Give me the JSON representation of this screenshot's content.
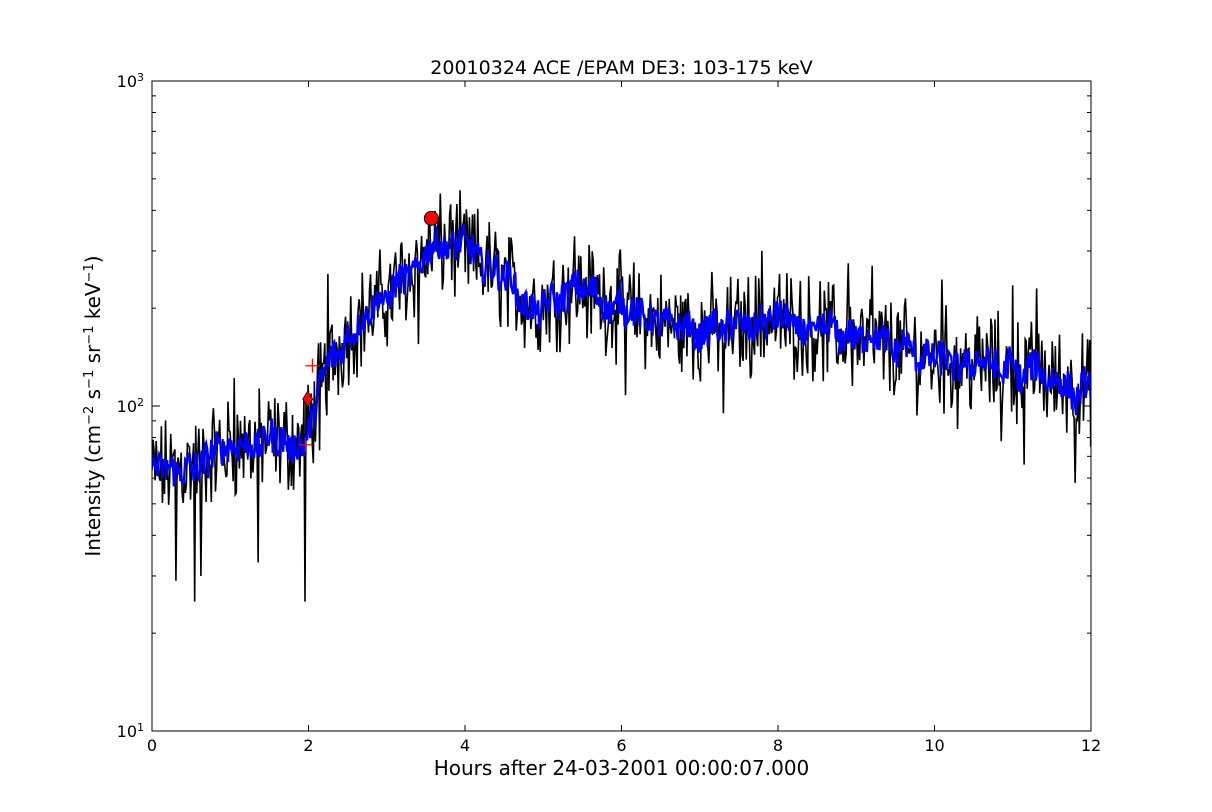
{
  "chart_data": {
    "type": "line",
    "title": "20010324 ACE /EPAM DE3: 103-175 keV",
    "xlabel": "Hours after 24-03-2001 00:00:07.000",
    "ylabel": {
      "prefix": "Intensity (cm",
      "parts": [
        {
          "text": "cm",
          "sup": "−2"
        },
        {
          "text": " s",
          "sup": "−1"
        },
        {
          "text": " sr",
          "sup": "−1"
        },
        {
          "text": " keV",
          "sup": "−1"
        }
      ],
      "suffix": ")"
    },
    "xlim": [
      0,
      12
    ],
    "ylim": [
      10,
      1000
    ],
    "yscale": "log",
    "xticks": [
      0,
      2,
      4,
      6,
      8,
      10,
      12
    ],
    "xtick_labels": [
      "0",
      "2",
      "4",
      "6",
      "8",
      "10",
      "12"
    ],
    "yticks": [
      {
        "value": 10,
        "base": "10",
        "exp": "1"
      },
      {
        "value": 100,
        "base": "10",
        "exp": "2"
      },
      {
        "value": 1000,
        "base": "10",
        "exp": "3"
      }
    ],
    "grid": false,
    "series": [
      {
        "role": "raw",
        "color": "#000000",
        "resolution_hours": 0.0133,
        "trend": [
          [
            0.0,
            62
          ],
          [
            0.5,
            66
          ],
          [
            1.0,
            75
          ],
          [
            1.5,
            78
          ],
          [
            1.9,
            76
          ],
          [
            2.0,
            85
          ],
          [
            2.2,
            125
          ],
          [
            2.5,
            170
          ],
          [
            3.0,
            215
          ],
          [
            3.3,
            260
          ],
          [
            3.6,
            310
          ],
          [
            4.0,
            300
          ],
          [
            4.5,
            245
          ],
          [
            4.9,
            200
          ],
          [
            5.4,
            235
          ],
          [
            6.0,
            200
          ],
          [
            6.5,
            180
          ],
          [
            7.0,
            170
          ],
          [
            8.0,
            185
          ],
          [
            9.0,
            160
          ],
          [
            10.0,
            140
          ],
          [
            11.0,
            130
          ],
          [
            12.0,
            112
          ]
        ],
        "noise_log10_amplitude": 0.12,
        "dips": [
          [
            0.55,
            25
          ],
          [
            0.63,
            30
          ],
          [
            0.3,
            29
          ],
          [
            1.35,
            33
          ],
          [
            1.95,
            25
          ],
          [
            2.14,
            73
          ],
          [
            3.4,
            155
          ],
          [
            6.05,
            108
          ],
          [
            7.3,
            95
          ],
          [
            8.9,
            87
          ],
          [
            10.3,
            85
          ],
          [
            10.85,
            78
          ],
          [
            11.15,
            66
          ],
          [
            11.8,
            58
          ]
        ],
        "peaks": [
          [
            1.05,
            122
          ],
          [
            2.25,
            255
          ],
          [
            3.8,
            390
          ],
          [
            5.4,
            333
          ],
          [
            7.8,
            300
          ],
          [
            8.9,
            275
          ],
          [
            9.2,
            270
          ],
          [
            10.1,
            245
          ],
          [
            11.0,
            235
          ],
          [
            11.3,
            230
          ]
        ]
      },
      {
        "role": "smoothed",
        "color": "#0000ff",
        "trend": [
          [
            0.0,
            62
          ],
          [
            0.5,
            67
          ],
          [
            1.0,
            76
          ],
          [
            1.5,
            78
          ],
          [
            1.9,
            76
          ],
          [
            2.0,
            82
          ],
          [
            2.2,
            125
          ],
          [
            2.5,
            170
          ],
          [
            3.0,
            215
          ],
          [
            3.3,
            260
          ],
          [
            3.6,
            310
          ],
          [
            4.0,
            300
          ],
          [
            4.5,
            245
          ],
          [
            4.9,
            200
          ],
          [
            5.4,
            235
          ],
          [
            6.0,
            200
          ],
          [
            6.5,
            180
          ],
          [
            7.0,
            170
          ],
          [
            8.0,
            185
          ],
          [
            9.0,
            160
          ],
          [
            10.0,
            140
          ],
          [
            11.0,
            130
          ],
          [
            12.0,
            112
          ]
        ],
        "noise_log10_amplitude": 0.05
      }
    ],
    "markers": [
      {
        "name": "onset-diamond-marker",
        "shape": "diamond",
        "x": 1.99,
        "y": 105,
        "color": "#ff0000"
      },
      {
        "name": "peak-circle-marker",
        "shape": "circle",
        "x": 3.57,
        "y": 378,
        "color": "#ff0000"
      },
      {
        "name": "onset-plus-marker-upper",
        "shape": "plus",
        "x": 2.05,
        "y": 133,
        "color": "#ff0000"
      },
      {
        "name": "onset-plus-marker-lower",
        "shape": "plus",
        "x": 1.96,
        "y": 76,
        "color": "#ff0000"
      }
    ]
  }
}
